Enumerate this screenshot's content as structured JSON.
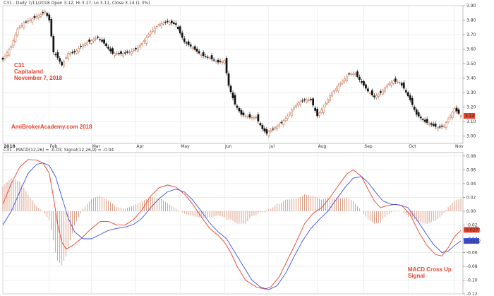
{
  "chart_data": [
    {
      "type": "candlestick",
      "header": "C31 - Daily 7/11/2018 Open 3.12, Hi 3.17, Lo 3.11, Close 3.14 (1.3%)",
      "annotations": [
        "C31",
        "Capitaland",
        "November 7, 2018",
        "AmiBrokerAcademy.com  2018"
      ],
      "x_tick_labels": [
        "2018",
        "Feb",
        "Mar",
        "Apr",
        "May",
        "Jun",
        "Jul",
        "Aug",
        "Sep",
        "Oct",
        "Nov"
      ],
      "x_tick_days": [
        0,
        22,
        42,
        63,
        84,
        105,
        126,
        149,
        171,
        192,
        214
      ],
      "ylim": [
        2.95,
        3.9
      ],
      "y_ticks": [
        3.9,
        3.8,
        3.7,
        3.6,
        3.5,
        3.4,
        3.3,
        3.2,
        3.1,
        3.0
      ],
      "y_tick_labels": [
        "3.90",
        "3.80",
        "3.70",
        "3.60",
        "3.50",
        "3.40",
        "3.30",
        "3.20",
        "3.10",
        "3.00"
      ],
      "last_price_label": "3.14",
      "last_price": 3.14,
      "close_path": [
        [
          0,
          3.53
        ],
        [
          4,
          3.62
        ],
        [
          7,
          3.74
        ],
        [
          10,
          3.78
        ],
        [
          14,
          3.81
        ],
        [
          18,
          3.84
        ],
        [
          20,
          3.86
        ],
        [
          22,
          3.8
        ],
        [
          24,
          3.58
        ],
        [
          26,
          3.54
        ],
        [
          28,
          3.49
        ],
        [
          31,
          3.57
        ],
        [
          34,
          3.58
        ],
        [
          38,
          3.63
        ],
        [
          42,
          3.66
        ],
        [
          45,
          3.68
        ],
        [
          48,
          3.64
        ],
        [
          52,
          3.57
        ],
        [
          56,
          3.57
        ],
        [
          60,
          3.58
        ],
        [
          63,
          3.6
        ],
        [
          66,
          3.64
        ],
        [
          70,
          3.72
        ],
        [
          74,
          3.77
        ],
        [
          78,
          3.79
        ],
        [
          82,
          3.77
        ],
        [
          86,
          3.65
        ],
        [
          90,
          3.61
        ],
        [
          94,
          3.56
        ],
        [
          98,
          3.54
        ],
        [
          102,
          3.51
        ],
        [
          105,
          3.52
        ],
        [
          107,
          3.35
        ],
        [
          110,
          3.22
        ],
        [
          113,
          3.15
        ],
        [
          117,
          3.13
        ],
        [
          120,
          3.13
        ],
        [
          123,
          3.05
        ],
        [
          125,
          3.02
        ],
        [
          128,
          3.05
        ],
        [
          131,
          3.08
        ],
        [
          134,
          3.12
        ],
        [
          137,
          3.18
        ],
        [
          140,
          3.23
        ],
        [
          143,
          3.25
        ],
        [
          146,
          3.25
        ],
        [
          149,
          3.14
        ],
        [
          152,
          3.2
        ],
        [
          155,
          3.28
        ],
        [
          158,
          3.33
        ],
        [
          161,
          3.38
        ],
        [
          164,
          3.43
        ],
        [
          167,
          3.43
        ],
        [
          170,
          3.37
        ],
        [
          173,
          3.31
        ],
        [
          176,
          3.27
        ],
        [
          179,
          3.3
        ],
        [
          182,
          3.35
        ],
        [
          185,
          3.38
        ],
        [
          188,
          3.37
        ],
        [
          190,
          3.33
        ],
        [
          193,
          3.25
        ],
        [
          196,
          3.15
        ],
        [
          200,
          3.1
        ],
        [
          203,
          3.08
        ],
        [
          206,
          3.06
        ],
        [
          209,
          3.07
        ],
        [
          212,
          3.14
        ],
        [
          214,
          3.19
        ],
        [
          217,
          3.14
        ]
      ]
    },
    {
      "type": "line",
      "header": "C31 - MACD(12,26) = -0.03, Signal(12,26,9) = -0.04",
      "ylim": [
        -0.12,
        0.085
      ],
      "y_ticks": [
        0.08,
        0.06,
        0.04,
        0.02,
        0.0,
        -0.02,
        -0.04,
        -0.06,
        -0.08,
        -0.1,
        -0.12
      ],
      "y_tick_labels": [
        "0.08",
        "0.06",
        "0.04",
        "0.02",
        "0.00",
        "-0.02",
        "-0.04",
        "-0.06",
        "-0.08",
        "-0.10",
        "-0.12"
      ],
      "annotations": [
        "MACD Cross Up",
        "Signal"
      ],
      "last_labels": [
        {
          "text": "-0.0271",
          "value": -0.0271,
          "color": "#e8402a"
        },
        {
          "text": "-0.0432",
          "value": -0.0432,
          "color": "#3a4fe0"
        }
      ],
      "series": [
        {
          "name": "MACD(12,26)",
          "color": "#e8402a",
          "points": [
            [
              0,
              0.01
            ],
            [
              4,
              0.04
            ],
            [
              8,
              0.064
            ],
            [
              12,
              0.075
            ],
            [
              16,
              0.074
            ],
            [
              19,
              0.07
            ],
            [
              22,
              0.055
            ],
            [
              24,
              0.02
            ],
            [
              26,
              -0.02
            ],
            [
              28,
              -0.045
            ],
            [
              30,
              -0.055
            ],
            [
              33,
              -0.05
            ],
            [
              37,
              -0.04
            ],
            [
              41,
              -0.028
            ],
            [
              46,
              -0.015
            ],
            [
              50,
              -0.015
            ],
            [
              54,
              -0.02
            ],
            [
              58,
              -0.02
            ],
            [
              62,
              -0.012
            ],
            [
              66,
              0.002
            ],
            [
              70,
              0.022
            ],
            [
              74,
              0.034
            ],
            [
              78,
              0.038
            ],
            [
              82,
              0.035
            ],
            [
              86,
              0.025
            ],
            [
              90,
              0.01
            ],
            [
              94,
              -0.008
            ],
            [
              98,
              -0.025
            ],
            [
              102,
              -0.035
            ],
            [
              105,
              -0.045
            ],
            [
              108,
              -0.06
            ],
            [
              111,
              -0.08
            ],
            [
              115,
              -0.1
            ],
            [
              120,
              -0.11
            ],
            [
              124,
              -0.113
            ],
            [
              127,
              -0.11
            ],
            [
              131,
              -0.095
            ],
            [
              135,
              -0.07
            ],
            [
              139,
              -0.045
            ],
            [
              143,
              -0.018
            ],
            [
              147,
              -0.003
            ],
            [
              151,
              0.005
            ],
            [
              155,
              0.02
            ],
            [
              159,
              0.037
            ],
            [
              163,
              0.054
            ],
            [
              166,
              0.06
            ],
            [
              170,
              0.05
            ],
            [
              173,
              0.032
            ],
            [
              176,
              0.015
            ],
            [
              179,
              0.005
            ],
            [
              182,
              0.008
            ],
            [
              186,
              0.01
            ],
            [
              189,
              0.008
            ],
            [
              193,
              -0.005
            ],
            [
              197,
              -0.03
            ],
            [
              201,
              -0.05
            ],
            [
              205,
              -0.063
            ],
            [
              208,
              -0.065
            ],
            [
              211,
              -0.053
            ],
            [
              214,
              -0.037
            ],
            [
              217,
              -0.028
            ]
          ]
        },
        {
          "name": "Signal(12,26,9)",
          "color": "#3a4fe0",
          "points": [
            [
              0,
              -0.02
            ],
            [
              4,
              0.0
            ],
            [
              8,
              0.028
            ],
            [
              12,
              0.055
            ],
            [
              16,
              0.068
            ],
            [
              19,
              0.07
            ],
            [
              22,
              0.066
            ],
            [
              25,
              0.05
            ],
            [
              28,
              0.02
            ],
            [
              31,
              -0.01
            ],
            [
              34,
              -0.03
            ],
            [
              38,
              -0.04
            ],
            [
              42,
              -0.04
            ],
            [
              46,
              -0.034
            ],
            [
              50,
              -0.028
            ],
            [
              54,
              -0.025
            ],
            [
              58,
              -0.023
            ],
            [
              62,
              -0.019
            ],
            [
              66,
              -0.01
            ],
            [
              70,
              0.005
            ],
            [
              74,
              0.018
            ],
            [
              78,
              0.028
            ],
            [
              82,
              0.032
            ],
            [
              86,
              0.028
            ],
            [
              90,
              0.016
            ],
            [
              94,
              0.0
            ],
            [
              98,
              -0.017
            ],
            [
              102,
              -0.03
            ],
            [
              106,
              -0.04
            ],
            [
              110,
              -0.06
            ],
            [
              114,
              -0.08
            ],
            [
              118,
              -0.1
            ],
            [
              122,
              -0.11
            ],
            [
              126,
              -0.114
            ],
            [
              130,
              -0.108
            ],
            [
              134,
              -0.09
            ],
            [
              138,
              -0.066
            ],
            [
              142,
              -0.043
            ],
            [
              146,
              -0.025
            ],
            [
              150,
              -0.012
            ],
            [
              154,
              0.0
            ],
            [
              158,
              0.017
            ],
            [
              162,
              0.034
            ],
            [
              166,
              0.048
            ],
            [
              170,
              0.05
            ],
            [
              173,
              0.042
            ],
            [
              176,
              0.03
            ],
            [
              180,
              0.015
            ],
            [
              184,
              0.01
            ],
            [
              188,
              0.009
            ],
            [
              192,
              0.005
            ],
            [
              196,
              -0.012
            ],
            [
              200,
              -0.03
            ],
            [
              204,
              -0.048
            ],
            [
              208,
              -0.06
            ],
            [
              211,
              -0.058
            ],
            [
              214,
              -0.05
            ],
            [
              217,
              -0.043
            ]
          ]
        }
      ]
    }
  ]
}
